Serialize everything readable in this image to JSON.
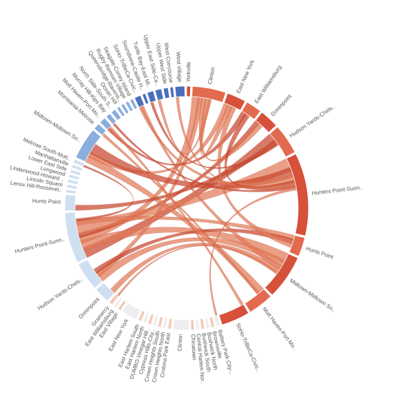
{
  "chart_data": {
    "type": "chord",
    "title": "",
    "colors": {
      "right_dark": "#d6503a",
      "right_mid": "#e26a4e",
      "right_light": "#eb8e6e",
      "left_blue": "#8aaede",
      "left_blue_dark": "#4a6fbf",
      "left_light": "#cfdff2",
      "pale": "#f3c9b3",
      "ribbon": "#e07a58",
      "ribbon_dark": "#c8472e"
    },
    "segments": [
      {
        "label": "Yorkville",
        "value": 1.2,
        "side": "right"
      },
      {
        "label": "Clinton",
        "value": 10.5,
        "side": "right"
      },
      {
        "label": "East New York",
        "value": 6.0,
        "side": "right"
      },
      {
        "label": "East Williamsburg",
        "value": 5.0,
        "side": "right"
      },
      {
        "label": "Greenpoint",
        "value": 6.0,
        "side": "right"
      },
      {
        "label": "Hudson Yards-Chels..",
        "value": 9.5,
        "side": "right"
      },
      {
        "label": "Hunters Point-Sunn..",
        "value": 26.0,
        "side": "right"
      },
      {
        "label": "Hunts Point",
        "value": 6.0,
        "side": "right"
      },
      {
        "label": "Midtown-Midtown So..",
        "value": 14.0,
        "side": "right"
      },
      {
        "label": "Mott Haven-Port Mo..",
        "value": 8.0,
        "side": "right"
      },
      {
        "label": "SoHo-TriBeCa-Civic..",
        "value": 9.0,
        "side": "right"
      },
      {
        "label": "Battery Park City-..",
        "value": 1.2,
        "side": "bottom"
      },
      {
        "label": "Brownsville",
        "value": 1.0,
        "side": "bottom"
      },
      {
        "label": "Bushwick North",
        "value": 1.0,
        "side": "bottom"
      },
      {
        "label": "Bushwick South",
        "value": 1.0,
        "side": "bottom"
      },
      {
        "label": "Central Harlem Nor..",
        "value": 1.0,
        "side": "bottom"
      },
      {
        "label": "Chinatown",
        "value": 1.0,
        "side": "bottom"
      },
      {
        "label": "Clinton",
        "value": 5.0,
        "side": "bottom"
      },
      {
        "label": "Crotona Park East",
        "value": 1.0,
        "side": "bottom"
      },
      {
        "label": "Crown Heights North",
        "value": 1.0,
        "side": "bottom"
      },
      {
        "label": "Crown Heights South",
        "value": 1.0,
        "side": "bottom"
      },
      {
        "label": "Cypress Hills-City..",
        "value": 1.0,
        "side": "bottom"
      },
      {
        "label": "DUMBO-Vinegar Hill..",
        "value": 1.0,
        "side": "bottom"
      },
      {
        "label": "East Harlem North",
        "value": 1.0,
        "side": "bottom"
      },
      {
        "label": "East Harlem South",
        "value": 1.0,
        "side": "bottom"
      },
      {
        "label": "East New York",
        "value": 5.0,
        "side": "bottom"
      },
      {
        "label": "East Village",
        "value": 1.0,
        "side": "bottom"
      },
      {
        "label": "East Williamsburg",
        "value": 1.0,
        "side": "bottom"
      },
      {
        "label": "Gramercy",
        "value": 1.2,
        "side": "bottom"
      },
      {
        "label": "Greenpoint",
        "value": 5.0,
        "side": "left"
      },
      {
        "label": "Hudson Yards-Chels..",
        "value": 9.0,
        "side": "left"
      },
      {
        "label": "Hunters Point-Sunn..",
        "value": 16.0,
        "side": "left"
      },
      {
        "label": "Hunts Point",
        "value": 5.0,
        "side": "left"
      },
      {
        "label": "Lenox Hill-Roosevel..",
        "value": 1.0,
        "side": "left"
      },
      {
        "label": "Lincoln Square",
        "value": 1.0,
        "side": "left"
      },
      {
        "label": "Lindenwood-Howard ..",
        "value": 1.0,
        "side": "left"
      },
      {
        "label": "Longwood",
        "value": 1.0,
        "side": "left"
      },
      {
        "label": "Lower East Side",
        "value": 1.0,
        "side": "left"
      },
      {
        "label": "Manhattanville",
        "value": 1.0,
        "side": "left"
      },
      {
        "label": "Melrose South-Mott..",
        "value": 1.2,
        "side": "left"
      },
      {
        "label": "Midtown-Midtown So..",
        "value": 10.0,
        "side": "left"
      },
      {
        "label": "Morrisania-Melrose",
        "value": 2.0,
        "side": "left"
      },
      {
        "label": "Mott Haven-Port Mo..",
        "value": 2.0,
        "side": "left"
      },
      {
        "label": "Murray Hill-Kips Bay",
        "value": 1.5,
        "side": "left"
      },
      {
        "label": "North Side-South S..",
        "value": 1.5,
        "side": "left"
      },
      {
        "label": "Ocean Hill",
        "value": 1.0,
        "side": "left"
      },
      {
        "label": "Queensbridge-Ravens..",
        "value": 1.0,
        "side": "left"
      },
      {
        "label": "Rugby-Remsen Village",
        "value": 1.0,
        "side": "left"
      },
      {
        "label": "Seagate-Coney Island",
        "value": 1.0,
        "side": "left"
      },
      {
        "label": "SoHo-TriBeCa-Civic..",
        "value": 2.0,
        "side": "left"
      },
      {
        "label": "Soundview-Castle H..",
        "value": 1.0,
        "side": "left"
      },
      {
        "label": "Turtle Bay-East Mi..",
        "value": 2.0,
        "side": "left"
      },
      {
        "label": "Upper East Side-Ca..",
        "value": 2.0,
        "side": "left"
      },
      {
        "label": "Upper West Side",
        "value": 1.5,
        "side": "left"
      },
      {
        "label": "West Concourse",
        "value": 1.0,
        "side": "left"
      },
      {
        "label": "West Village",
        "value": 3.0,
        "side": "left"
      }
    ],
    "links": [
      [
        "Hunters Point-Sunn..",
        "Hudson Yards-Chels..",
        4
      ],
      [
        "Hunters Point-Sunn..",
        "Midtown-Midtown So..",
        4
      ],
      [
        "Hunters Point-Sunn..",
        "Clinton",
        3
      ],
      [
        "Hunters Point-Sunn..",
        "Greenpoint",
        2
      ],
      [
        "Hunters Point-Sunn..",
        "Hunters Point-Sunn..",
        5
      ],
      [
        "Hunters Point-Sunn..",
        "Hunts Point",
        2
      ],
      [
        "Hunters Point-Sunn..",
        "Melrose South-Mott..",
        1
      ],
      [
        "Hudson Yards-Chels..",
        "Midtown-Midtown So..",
        3
      ],
      [
        "Hudson Yards-Chels..",
        "Clinton",
        2
      ],
      [
        "Hudson Yards-Chels..",
        "Hunts Point",
        2
      ],
      [
        "Midtown-Midtown So..",
        "Mott Haven-Port Mo..",
        3
      ],
      [
        "Midtown-Midtown So..",
        "East New York",
        2
      ],
      [
        "Midtown-Midtown So..",
        "Hunters Point-Sunn..",
        4
      ],
      [
        "SoHo-TriBeCa-Civic..",
        "Hunters Point-Sunn..",
        3
      ],
      [
        "SoHo-TriBeCa-Civic..",
        "Midtown-Midtown So..",
        2
      ],
      [
        "Mott Haven-Port Mo..",
        "East Williamsburg",
        2
      ],
      [
        "Clinton",
        "Greenpoint",
        2
      ],
      [
        "Clinton",
        "East New York",
        2
      ],
      [
        "Hunts Point",
        "Hudson Yards-Chels..",
        2
      ],
      [
        "East New York",
        "Hunts Point",
        2
      ],
      [
        "Greenpoint",
        "Midtown-Midtown So..",
        2
      ],
      [
        "East Williamsburg",
        "Hunters Point-Sunn..",
        2
      ],
      [
        "West Village",
        "Hunters Point-Sunn..",
        1
      ],
      [
        "Upper East Side-Ca..",
        "Clinton",
        1
      ],
      [
        "Turtle Bay-East Mi..",
        "Hudson Yards-Chels..",
        1
      ],
      [
        "Morrisania-Melrose",
        "Mott Haven-Port Mo..",
        1
      ],
      [
        "Mott Haven-Port Mo..",
        "SoHo-TriBeCa-Civic..",
        1
      ],
      [
        "Murray Hill-Kips Bay",
        "Hunters Point-Sunn..",
        1
      ],
      [
        "Gramercy",
        "Midtown-Midtown So..",
        1
      ],
      [
        "Battery Park City-..",
        "Hunters Point-Sunn..",
        1
      ]
    ]
  }
}
